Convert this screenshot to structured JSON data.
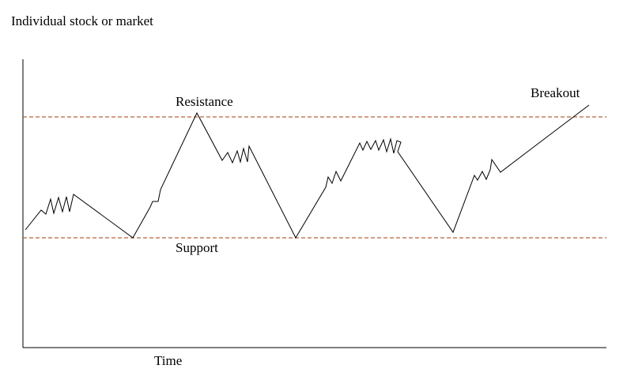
{
  "title": "Individual stock or market",
  "labels": {
    "resistance": "Resistance",
    "support": "Support",
    "breakout": "Breakout",
    "x_axis": "Time"
  }
}
